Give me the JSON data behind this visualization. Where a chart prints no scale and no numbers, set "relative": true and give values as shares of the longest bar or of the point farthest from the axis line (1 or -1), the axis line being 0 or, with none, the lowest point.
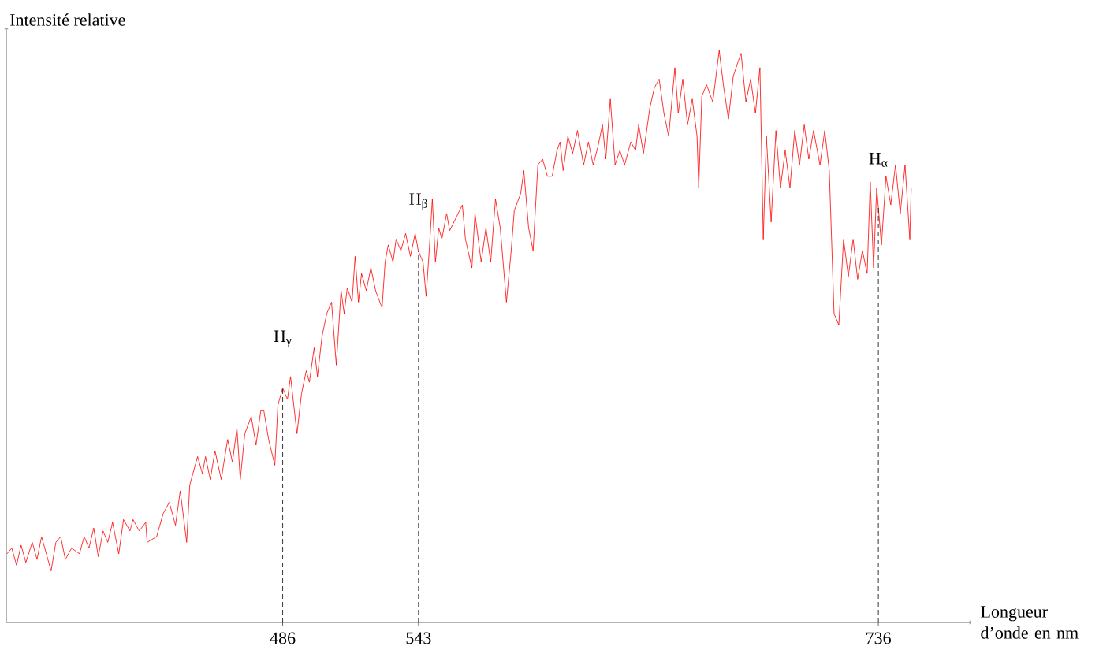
{
  "chart_data": {
    "type": "line",
    "relative": true,
    "color": "#ff0000",
    "ylabel": "Intensité relative",
    "xlabel": "Longueur d’onde en nm",
    "xlim": [
      370,
      775
    ],
    "xticks": [
      486,
      543,
      736
    ],
    "x": [
      370.3,
      372.3,
      374.3,
      376.2,
      378.2,
      380.9,
      382.9,
      384.8,
      386.8,
      388.8,
      390.8,
      392.8,
      394.8,
      397.4,
      400.7,
      402.7,
      404.7,
      406.7,
      408.6,
      410.6,
      412.6,
      414.6,
      417.2,
      419.2,
      421.9,
      423.2,
      425.8,
      428.5,
      429.1,
      433.1,
      435.8,
      438.4,
      441.0,
      443.0,
      445.7,
      447.0,
      448.3,
      450.3,
      452.3,
      453.6,
      455.6,
      457.6,
      460.2,
      462.9,
      464.9,
      466.8,
      468.2,
      470.1,
      472.8,
      474.8,
      476.8,
      478.1,
      480.1,
      482.7,
      484.0,
      486.0,
      488.0,
      489.3,
      492.0,
      493.9,
      495.9,
      497.2,
      499.2,
      500.6,
      502.5,
      504.5,
      506.5,
      508.5,
      510.5,
      511.8,
      513.1,
      515.1,
      516.4,
      517.8,
      519.1,
      521.1,
      523.0,
      525.0,
      527.7,
      529.0,
      530.3,
      532.3,
      533.6,
      535.6,
      537.6,
      539.6,
      541.6,
      542.9,
      544.9,
      546.2,
      547.5,
      548.8,
      550.1,
      551.5,
      552.8,
      554.8,
      556.1,
      561.4,
      562.7,
      565.4,
      566.7,
      569.3,
      571.3,
      573.3,
      575.3,
      577.3,
      579.9,
      581.9,
      583.2,
      585.9,
      587.2,
      589.2,
      591.1,
      593.1,
      595.1,
      597.1,
      599.1,
      601.1,
      602.4,
      603.7,
      605.7,
      607.7,
      609.7,
      612.3,
      614.3,
      616.3,
      618.2,
      620.2,
      621.6,
      623.5,
      625.5,
      627.5,
      629.5,
      632.1,
      634.1,
      635.4,
      637.4,
      640.1,
      642.0,
      644.0,
      646.0,
      648.0,
      650.6,
      652.0,
      653.9,
      655.9,
      657.9,
      659.9,
      660.6,
      661.9,
      663.9,
      666.5,
      669.2,
      671.1,
      673.1,
      675.1,
      677.1,
      678.4,
      680.4,
      682.4,
      684.4,
      686.3,
      687.7,
      689.0,
      691.0,
      693.0,
      694.9,
      696.9,
      698.9,
      700.9,
      702.9,
      704.9,
      706.8,
      708.8,
      711.5,
      713.5,
      715.4,
      717.4,
      719.4,
      721.4,
      723.4,
      725.4,
      727.3,
      729.3,
      731.3,
      732.6,
      734.0,
      735.3,
      737.3,
      739.2,
      741.2,
      743.2,
      745.2,
      747.2,
      749.2,
      749.8
    ],
    "values": [
      0.12,
      0.13,
      0.1,
      0.135,
      0.105,
      0.14,
      0.11,
      0.15,
      0.12,
      0.09,
      0.14,
      0.15,
      0.11,
      0.13,
      0.12,
      0.15,
      0.13,
      0.165,
      0.115,
      0.16,
      0.14,
      0.175,
      0.12,
      0.18,
      0.16,
      0.18,
      0.16,
      0.175,
      0.14,
      0.15,
      0.19,
      0.21,
      0.17,
      0.23,
      0.14,
      0.24,
      0.26,
      0.29,
      0.26,
      0.29,
      0.25,
      0.3,
      0.25,
      0.32,
      0.28,
      0.34,
      0.25,
      0.33,
      0.36,
      0.31,
      0.37,
      0.37,
      0.32,
      0.275,
      0.38,
      0.41,
      0.39,
      0.43,
      0.33,
      0.4,
      0.44,
      0.42,
      0.48,
      0.43,
      0.5,
      0.54,
      0.56,
      0.45,
      0.58,
      0.54,
      0.585,
      0.56,
      0.64,
      0.56,
      0.61,
      0.58,
      0.62,
      0.58,
      0.55,
      0.63,
      0.66,
      0.63,
      0.67,
      0.65,
      0.68,
      0.64,
      0.68,
      0.65,
      0.63,
      0.57,
      0.65,
      0.74,
      0.63,
      0.69,
      0.67,
      0.715,
      0.685,
      0.73,
      0.67,
      0.62,
      0.715,
      0.63,
      0.69,
      0.63,
      0.74,
      0.69,
      0.56,
      0.65,
      0.72,
      0.75,
      0.79,
      0.69,
      0.65,
      0.8,
      0.81,
      0.78,
      0.78,
      0.825,
      0.84,
      0.79,
      0.85,
      0.82,
      0.86,
      0.8,
      0.84,
      0.8,
      0.83,
      0.87,
      0.81,
      0.915,
      0.8,
      0.825,
      0.8,
      0.84,
      0.825,
      0.87,
      0.82,
      0.9,
      0.935,
      0.95,
      0.89,
      0.85,
      0.97,
      0.89,
      0.95,
      0.87,
      0.915,
      0.85,
      0.76,
      0.92,
      0.94,
      0.91,
      1.0,
      0.935,
      0.88,
      0.955,
      0.98,
      0.995,
      0.91,
      0.95,
      0.89,
      0.97,
      0.67,
      0.85,
      0.7,
      0.86,
      0.76,
      0.825,
      0.76,
      0.86,
      0.8,
      0.87,
      0.81,
      0.86,
      0.8,
      0.86,
      0.79,
      0.54,
      0.52,
      0.67,
      0.605,
      0.67,
      0.6,
      0.65,
      0.61,
      0.77,
      0.62,
      0.76,
      0.66,
      0.78,
      0.73,
      0.8,
      0.715,
      0.8,
      0.67,
      0.76
    ],
    "ref_lines": [
      {
        "axis": "x",
        "value": 486,
        "label": "H$_{γ}$",
        "color": "#000000",
        "line_style": "dashed"
      },
      {
        "axis": "x",
        "value": 543,
        "label": "H$_{β}$",
        "color": "#000000",
        "line_style": "dashed"
      },
      {
        "axis": "x",
        "value": 736,
        "label": "H$_{α}$",
        "color": "#000000",
        "line_style": "dashed"
      }
    ]
  }
}
